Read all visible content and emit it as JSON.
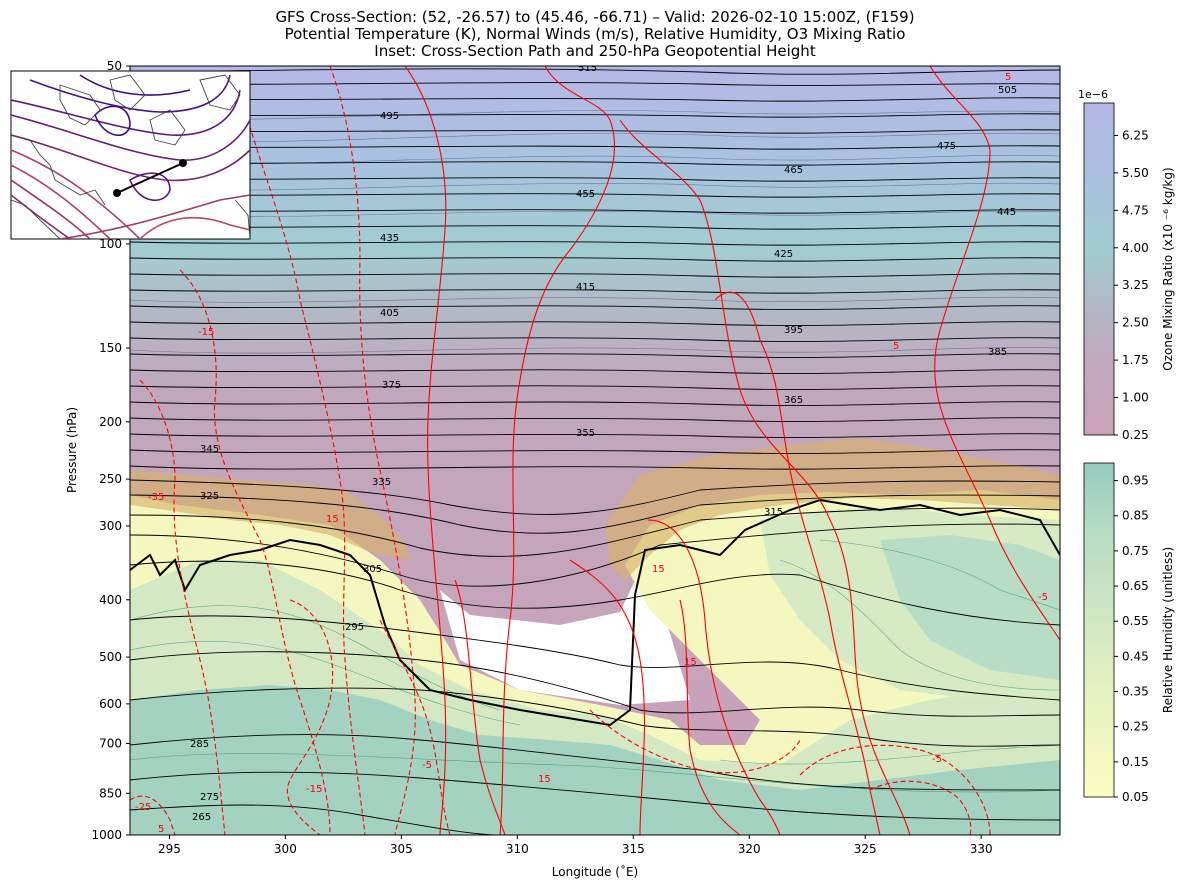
{
  "chart_data": {
    "type": "contour",
    "title": "GFS Cross-Section: (52, -26.57) to (45.46, -66.71) – Valid: 2026-02-10 15:00Z, (F159)",
    "subtitle": "Potential Temperature (K), Normal Winds (m/s), Relative Humidity, O3 Mixing Ratio",
    "subtitle2": "Inset: Cross-Section Path and 250-hPa Geopotential Height",
    "xlabel": "Longitude (˚E)",
    "ylabel": "Pressure (hPa)",
    "xlim": [
      293.3,
      333.4
    ],
    "ylim": [
      1000,
      50
    ],
    "y_scale": "log",
    "x_ticks": [
      "295",
      "300",
      "305",
      "310",
      "315",
      "320",
      "325",
      "330"
    ],
    "y_ticks": [
      "50",
      "100",
      "150",
      "200",
      "250",
      "300",
      "400",
      "500",
      "600",
      "700",
      "850",
      "1000"
    ],
    "theta_labels": [
      "515",
      "505",
      "495",
      "475",
      "465",
      "455",
      "445",
      "435",
      "425",
      "415",
      "405",
      "395",
      "385",
      "375",
      "365",
      "355",
      "345",
      "335",
      "325",
      "315",
      "305",
      "295",
      "285",
      "275",
      "265"
    ],
    "wind_labels": [
      "5",
      "5",
      "15",
      "15",
      "15",
      "15",
      "-5",
      "-5",
      "-15",
      "-15",
      "-25",
      "-35",
      "5",
      "-5"
    ],
    "ozone_colorbar": {
      "label": "Ozone Mixing Ratio (x10 ⁻⁶ kg/kg)",
      "exponent": "1e−6",
      "ticks": [
        "6.25",
        "5.50",
        "4.75",
        "4.00",
        "3.25",
        "2.50",
        "1.75",
        "1.00",
        "0.25"
      ],
      "colors": [
        "#b5b6e3",
        "#a8c3df",
        "#a0cccf",
        "#b3b6c3",
        "#c3a8bd",
        "#cba2b9"
      ]
    },
    "rh_colorbar": {
      "label": "Relative Humidity (unitless)",
      "ticks": [
        "0.95",
        "0.85",
        "0.75",
        "0.65",
        "0.55",
        "0.45",
        "0.35",
        "0.25",
        "0.15",
        "0.05"
      ],
      "colors": [
        "#98cbbf",
        "#bde0c5",
        "#cfe6c2",
        "#e3f1c0",
        "#f4f8c0",
        "#fbfbc1"
      ]
    },
    "colors": {
      "theta": "#000000",
      "wind": "#ff0000",
      "ozone_contour": "#55557a",
      "rh_contour": "#2a8c6a",
      "tropopause_band": "#d8b26c"
    }
  }
}
